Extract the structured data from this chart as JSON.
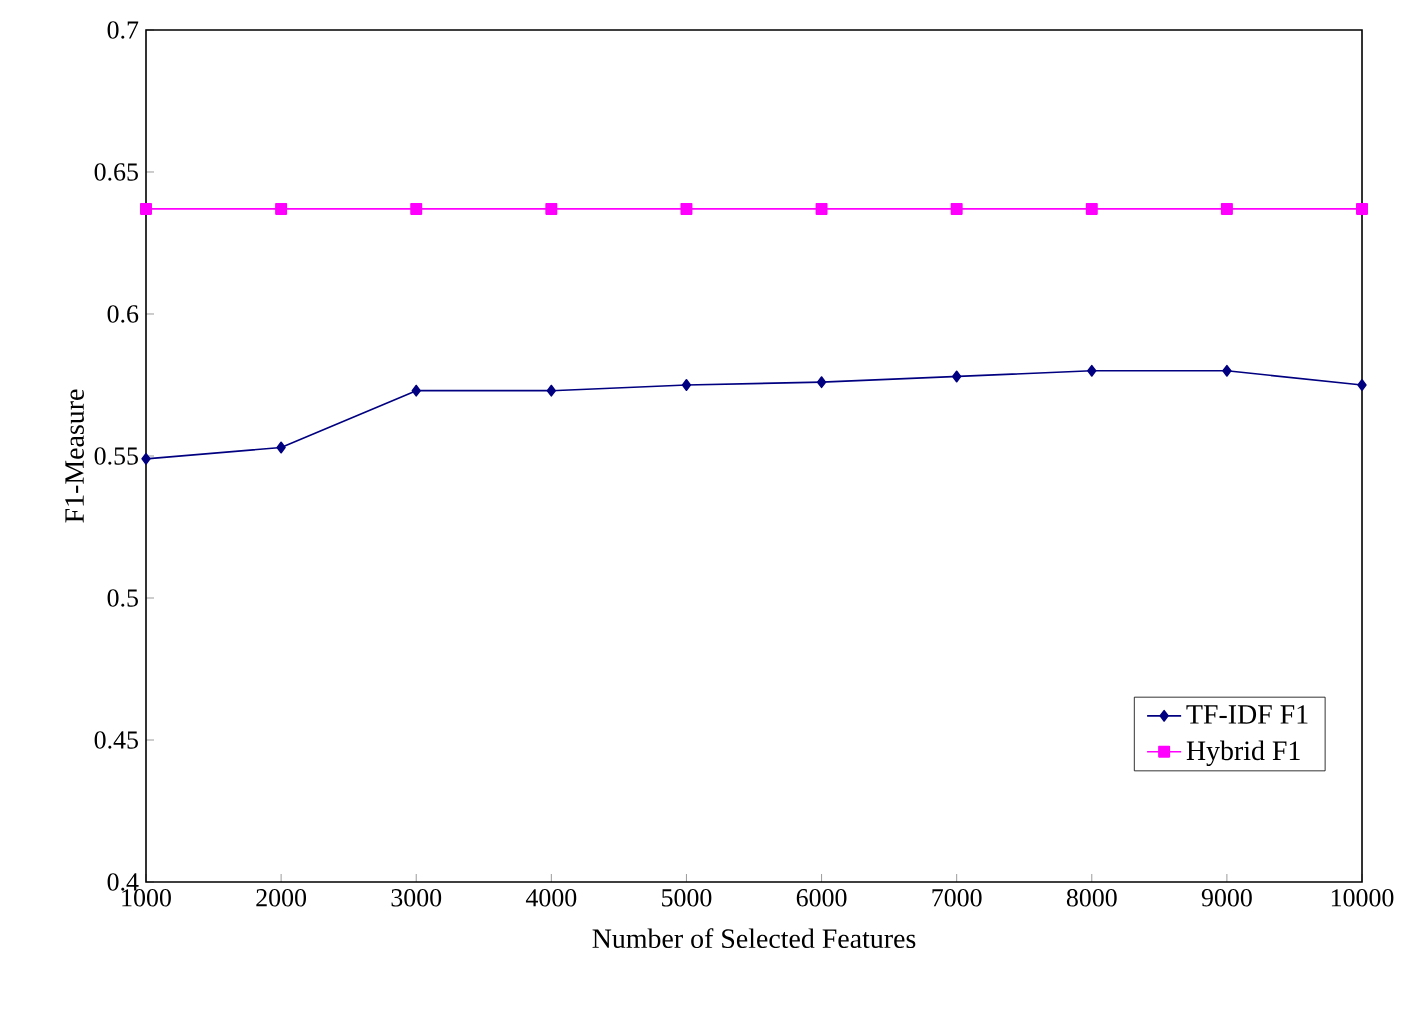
{
  "chart_data": {
    "type": "line",
    "xlabel": "Number of Selected Features",
    "ylabel": "F1-Measure",
    "x": [
      1000,
      2000,
      3000,
      4000,
      5000,
      6000,
      7000,
      8000,
      9000,
      10000
    ],
    "series": [
      {
        "name": "TF-IDF F1",
        "color": "#000080",
        "marker": "diamond",
        "values": [
          0.549,
          0.553,
          0.573,
          0.573,
          0.575,
          0.576,
          0.578,
          0.58,
          0.58,
          0.575
        ]
      },
      {
        "name": "Hybrid F1",
        "color": "#ff00ff",
        "marker": "square",
        "values": [
          0.637,
          0.637,
          0.637,
          0.637,
          0.637,
          0.637,
          0.637,
          0.637,
          0.637,
          0.637
        ]
      }
    ],
    "xlim": [
      1000,
      10000
    ],
    "xticks": [
      1000,
      2000,
      3000,
      4000,
      5000,
      6000,
      7000,
      8000,
      9000,
      10000
    ],
    "ylim": [
      0.4,
      0.7
    ],
    "yticks": [
      0.4,
      0.45,
      0.5,
      0.55,
      0.6,
      0.65,
      0.7
    ],
    "grid": false,
    "legend": "bottom right",
    "line_style": "solid"
  }
}
